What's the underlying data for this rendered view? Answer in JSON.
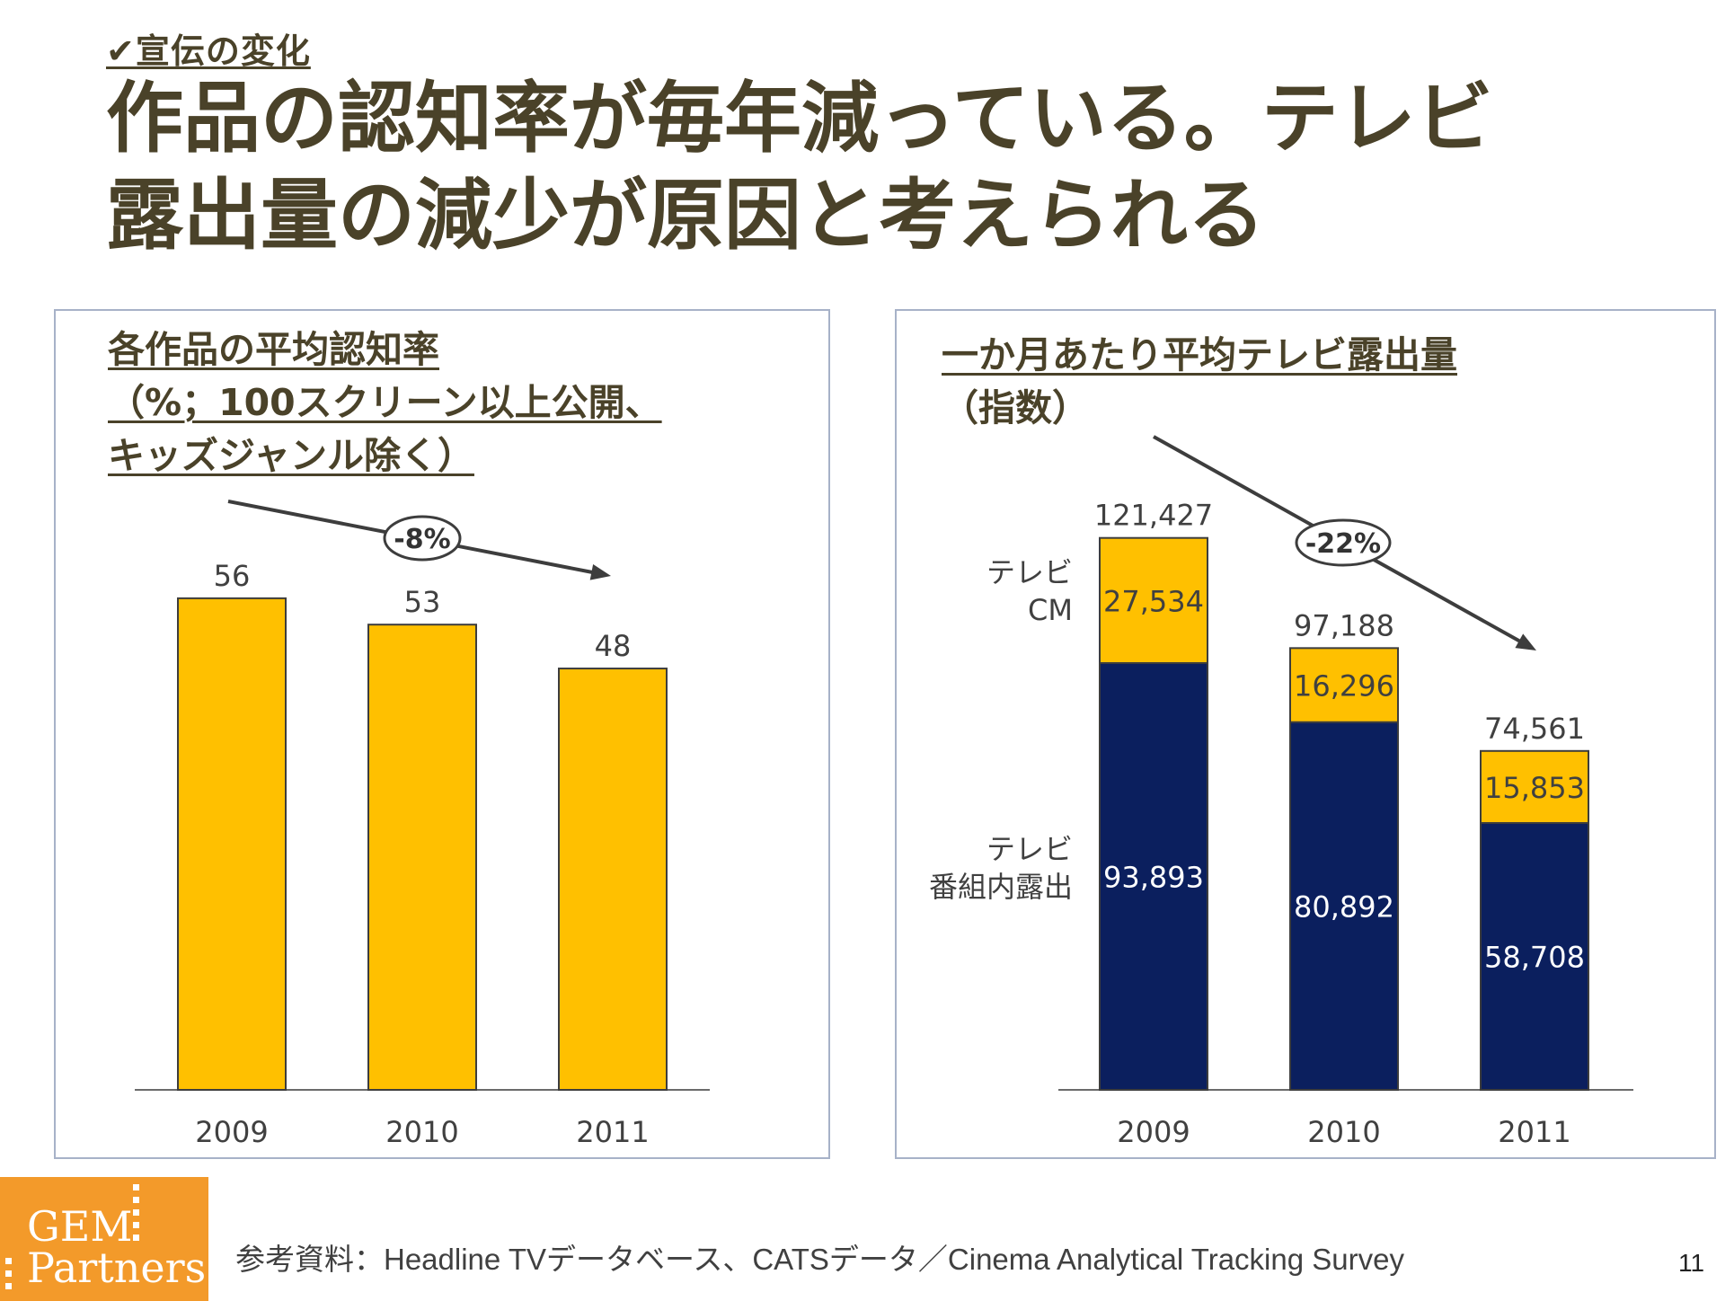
{
  "slide": {
    "category": "✔宣伝の変化",
    "title_lines": [
      "作品の認知率が毎年減っている。テレビ",
      "露出量の減少が原因と考えられる"
    ],
    "page_number": "11"
  },
  "footer": {
    "logo_lines": [
      "GEM",
      "Partners"
    ],
    "source": "参考資料：Headline TVデータベース、CATSデータ／Cinema Analytical Tracking Survey"
  },
  "colors": {
    "text": "#4a4229",
    "bar_yellow": "#ffc000",
    "bar_navy": "#0b1f5e",
    "logo_orange": "#f39a2a",
    "panel_border": "#a7b2c8"
  },
  "chart_data": [
    {
      "type": "bar",
      "title_lines": [
        "各作品の平均認知率",
        "（%；100スクリーン以上公開、",
        "キッズジャンル除く）"
      ],
      "categories": [
        "2009",
        "2010",
        "2011"
      ],
      "values": [
        56,
        53,
        48
      ],
      "value_labels": [
        "56",
        "53",
        "48"
      ],
      "ylim": [
        0,
        100
      ],
      "trend_label": "-8%",
      "legend": "none",
      "grid": false
    },
    {
      "type": "bar",
      "stacked": true,
      "title_lines": [
        "一か月あたり平均テレビ露出量",
        "（指数）"
      ],
      "categories": [
        "2009",
        "2010",
        "2011"
      ],
      "series": [
        {
          "name": "テレビ番組内露出",
          "name_lines": [
            "テレビ",
            "番組内露出"
          ],
          "values": [
            93893,
            80892,
            58708
          ],
          "value_labels": [
            "93,893",
            "80,892",
            "58,708"
          ],
          "color": "#0b1f5e"
        },
        {
          "name": "テレビCM",
          "name_lines": [
            "テレビ",
            "CM"
          ],
          "values": [
            27534,
            16296,
            15853
          ],
          "value_labels": [
            "27,534",
            "16,296",
            "15,853"
          ],
          "color": "#ffc000"
        }
      ],
      "totals": [
        121427,
        97188,
        74561
      ],
      "total_labels": [
        "121,427",
        "97,188",
        "74,561"
      ],
      "ylim": [
        0,
        130000
      ],
      "trend_label": "-22%",
      "legend": "left",
      "grid": false
    }
  ]
}
